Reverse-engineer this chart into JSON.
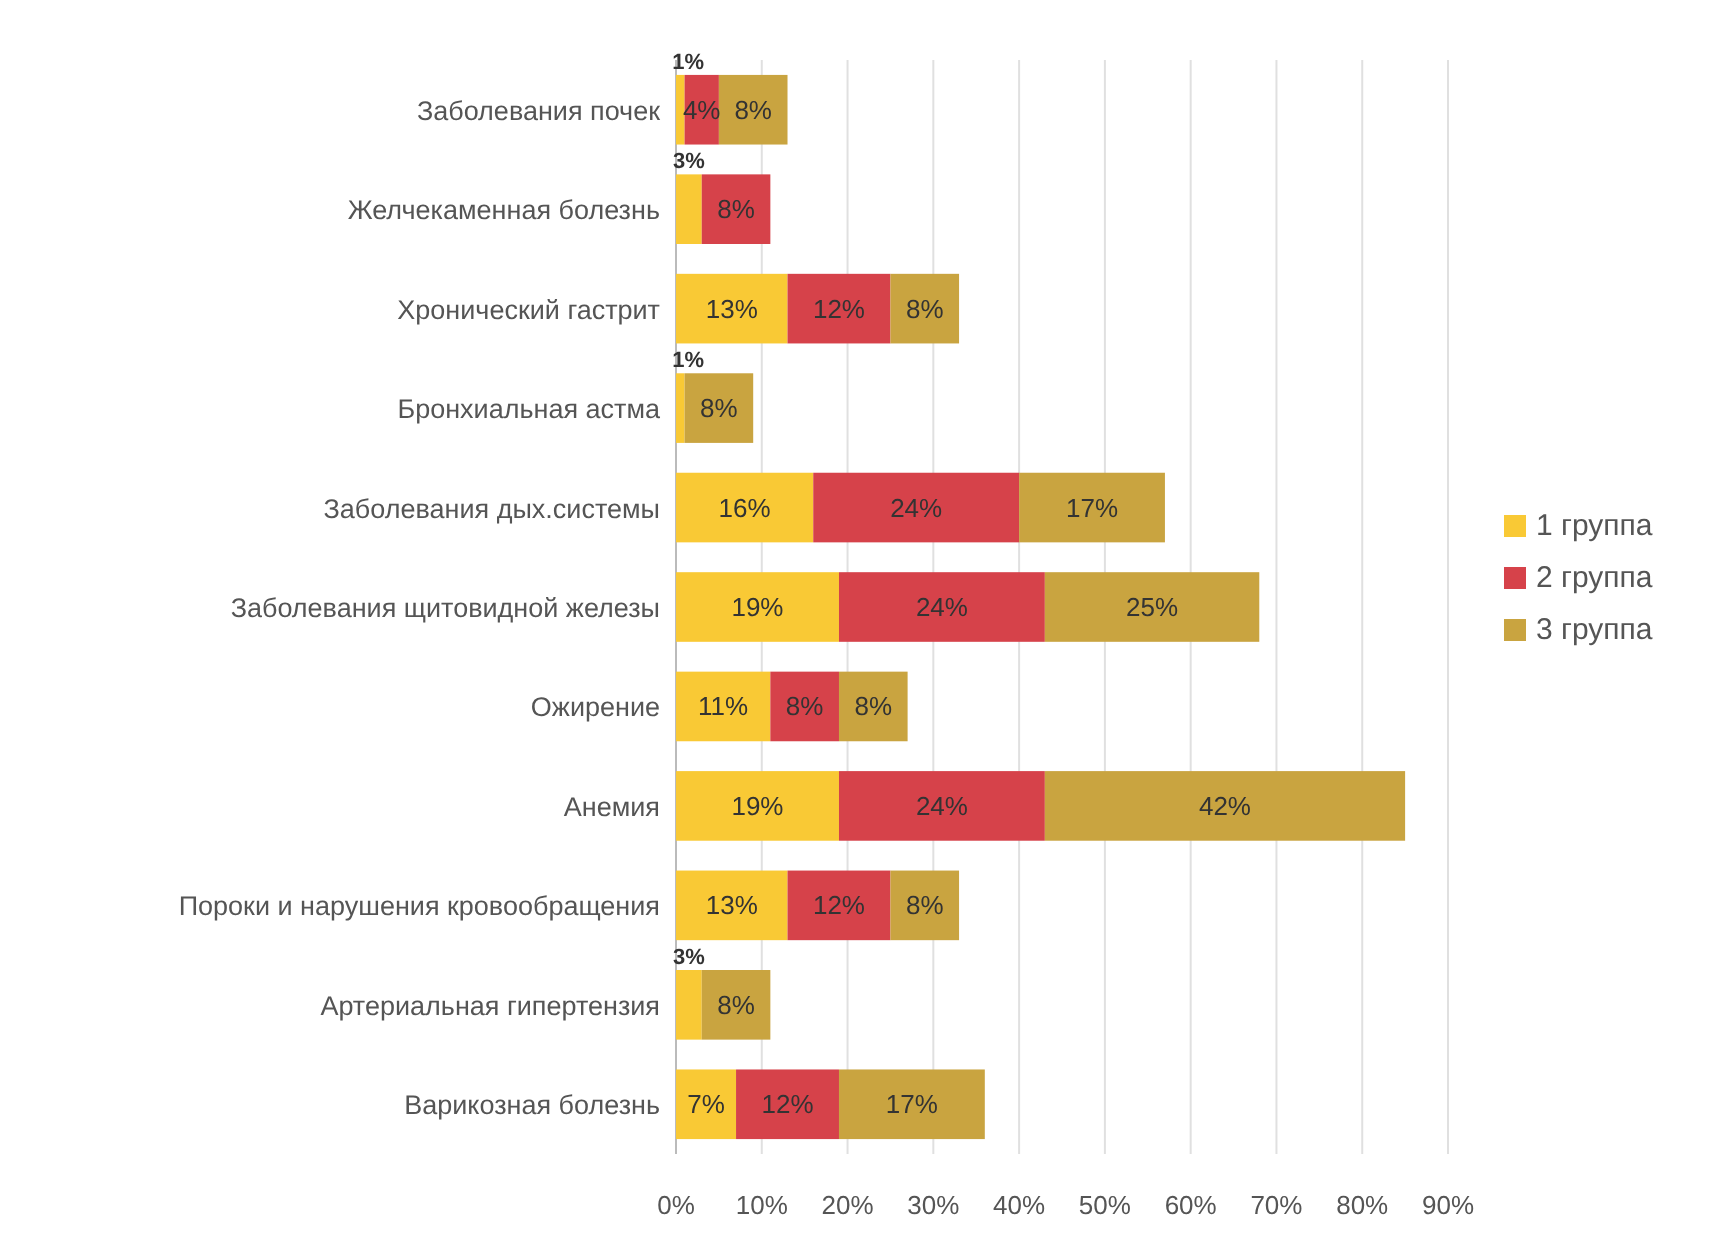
{
  "chart_data": {
    "type": "bar",
    "orientation": "horizontal",
    "stacked": true,
    "categories": [
      "Заболевания почек",
      "Желчекаменная болезнь",
      "Хронический гастрит",
      "Бронхиальная астма",
      "Заболевания дых.системы",
      "Заболевания щитовидной железы",
      "Ожирение",
      "Анемия",
      "Пороки и нарушения кровообращения",
      "Артериальная гипертензия",
      "Варикозная болезнь"
    ],
    "series": [
      {
        "name": "1 группа",
        "color": "#f9c935",
        "values": [
          1,
          3,
          13,
          1,
          16,
          19,
          11,
          19,
          13,
          3,
          7
        ],
        "value_labels": [
          "1%",
          "3%",
          "13%",
          "1%",
          "16%",
          "19%",
          "11%",
          "19%",
          "13%",
          "3%",
          "7%"
        ]
      },
      {
        "name": "2 группа",
        "color": "#d6424a",
        "values": [
          4,
          8,
          12,
          null,
          24,
          24,
          8,
          24,
          12,
          null,
          12
        ],
        "value_labels": [
          "4%",
          "8%",
          "12%",
          null,
          "24%",
          "24%",
          "8%",
          "24%",
          "12%",
          null,
          "12%"
        ]
      },
      {
        "name": "3 группа",
        "color": "#c9a440",
        "values": [
          8,
          null,
          8,
          8,
          17,
          25,
          8,
          42,
          8,
          8,
          17
        ],
        "value_labels": [
          "8%",
          null,
          "8%",
          "8%",
          "17%",
          "25%",
          "8%",
          "42%",
          "8%",
          "8%",
          "17%"
        ]
      }
    ],
    "xlim": [
      0,
      90
    ],
    "xticks": [
      {
        "value": 0,
        "label": "0%"
      },
      {
        "value": 10,
        "label": "10%"
      },
      {
        "value": 20,
        "label": "20%"
      },
      {
        "value": 30,
        "label": "30%"
      },
      {
        "value": 40,
        "label": "40%"
      },
      {
        "value": 50,
        "label": "50%"
      },
      {
        "value": 60,
        "label": "60%"
      },
      {
        "value": 70,
        "label": "70%"
      },
      {
        "value": 80,
        "label": "80%"
      },
      {
        "value": 90,
        "label": "90%"
      }
    ],
    "grid": "x",
    "legend": "right"
  }
}
